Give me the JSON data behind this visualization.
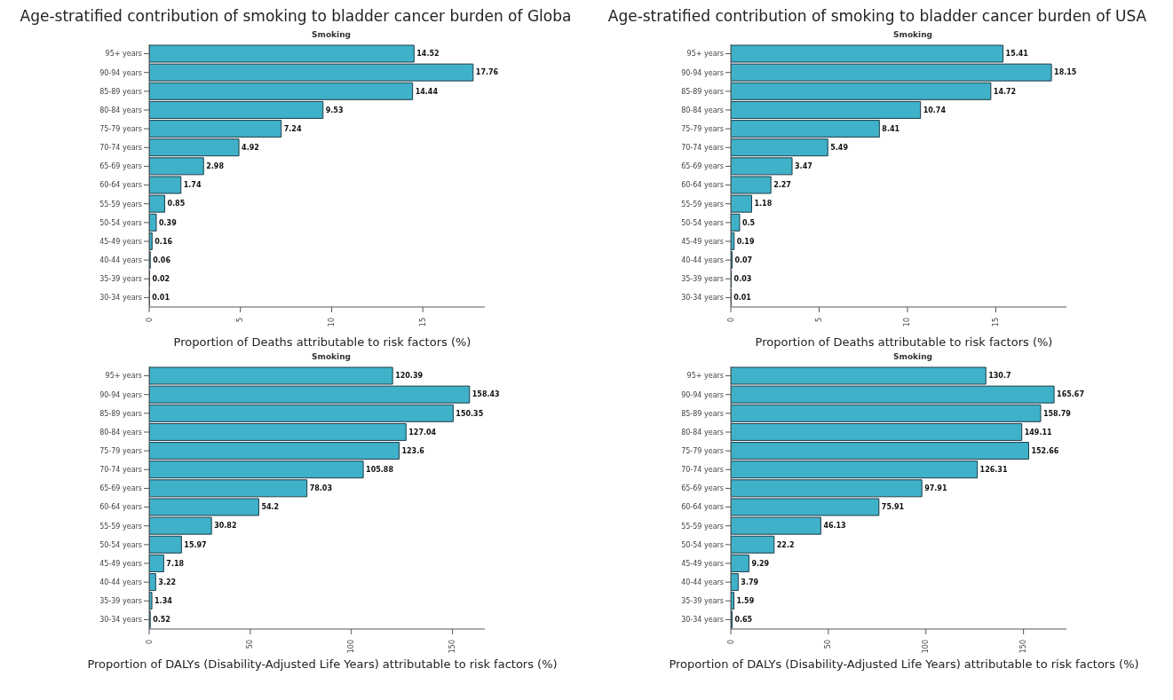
{
  "chart_data": [
    {
      "type": "bar",
      "orientation": "horizontal",
      "title": "Age-stratified contribution of smoking to bladder cancer burden of Globa",
      "subtitle": "Smoking",
      "xlabel": "Proportion of Deaths attributable to risk factors (%)",
      "categories": [
        "95+ years",
        "90-94 years",
        "85-89 years",
        "80-84 years",
        "75-79 years",
        "70-74 years",
        "65-69 years",
        "60-64 years",
        "55-59 years",
        "50-54 years",
        "45-49 years",
        "40-44 years",
        "35-39 years",
        "30-34 years"
      ],
      "values": [
        14.52,
        17.76,
        14.44,
        9.53,
        7.24,
        4.92,
        2.98,
        1.74,
        0.85,
        0.39,
        0.16,
        0.06,
        0.02,
        0.01
      ],
      "color": "#3fb2c9",
      "xlim": [
        0,
        18.4
      ],
      "xticks": [
        0,
        5,
        10,
        15
      ],
      "grid": false,
      "data_labels": true
    },
    {
      "type": "bar",
      "orientation": "horizontal",
      "title": "Age-stratified contribution of smoking to bladder cancer burden of USA",
      "subtitle": "Smoking",
      "xlabel": "Proportion of Deaths attributable to risk factors (%)",
      "categories": [
        "95+ years",
        "90-94 years",
        "85-89 years",
        "80-84 years",
        "75-79 years",
        "70-74 years",
        "65-69 years",
        "60-64 years",
        "55-59 years",
        "50-54 years",
        "45-49 years",
        "40-44 years",
        "35-39 years",
        "30-34 years"
      ],
      "values": [
        15.41,
        18.15,
        14.72,
        10.74,
        8.41,
        5.49,
        3.47,
        2.27,
        1.18,
        0.5,
        0.19,
        0.07,
        0.03,
        0.01
      ],
      "color": "#3fb2c9",
      "xlim": [
        0,
        19
      ],
      "xticks": [
        0,
        5,
        10,
        15
      ],
      "grid": false,
      "data_labels": true
    },
    {
      "type": "bar",
      "orientation": "horizontal",
      "title": "Smoking",
      "xlabel": "Proportion of DALYs (Disability-Adjusted Life Years) attributable to risk factors (%)",
      "categories": [
        "95+ years",
        "90-94 years",
        "85-89 years",
        "80-84 years",
        "75-79 years",
        "70-74 years",
        "65-69 years",
        "60-64 years",
        "55-59 years",
        "50-54 years",
        "45-49 years",
        "40-44 years",
        "35-39 years",
        "30-34 years"
      ],
      "values": [
        120.39,
        158.43,
        150.35,
        127.04,
        123.6,
        105.88,
        78.03,
        54.2,
        30.82,
        15.97,
        7.18,
        3.22,
        1.34,
        0.52
      ],
      "color": "#3fb2c9",
      "xlim": [
        0,
        166
      ],
      "xticks": [
        0,
        50,
        100,
        150
      ],
      "grid": false,
      "data_labels": true
    },
    {
      "type": "bar",
      "orientation": "horizontal",
      "title": "Smoking",
      "xlabel": "Proportion of DALYs (Disability-Adjusted Life Years) attributable to risk factors (%)",
      "categories": [
        "95+ years",
        "90-94 years",
        "85-89 years",
        "80-84 years",
        "75-79 years",
        "70-74 years",
        "65-69 years",
        "60-64 years",
        "55-59 years",
        "50-54 years",
        "45-49 years",
        "40-44 years",
        "35-39 years",
        "30-34 years"
      ],
      "values": [
        130.7,
        165.67,
        158.79,
        149.11,
        152.66,
        126.31,
        97.91,
        75.91,
        46.13,
        22.2,
        9.29,
        3.79,
        1.59,
        0.65
      ],
      "color": "#3fb2c9",
      "xlim": [
        0,
        172
      ],
      "xticks": [
        0,
        50,
        100,
        150
      ],
      "grid": false,
      "data_labels": true
    }
  ]
}
